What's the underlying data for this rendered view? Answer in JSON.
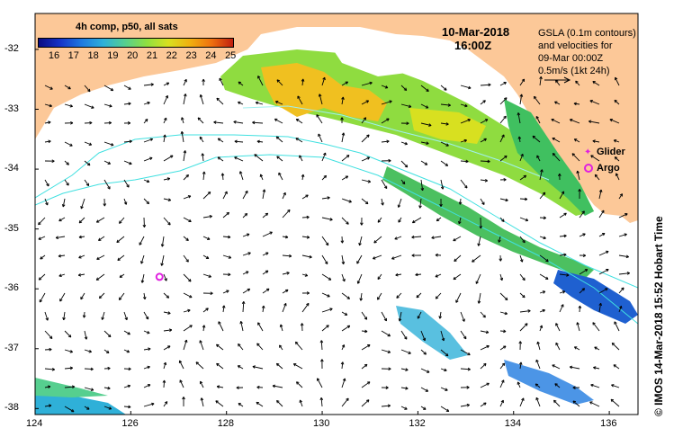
{
  "colorbar": {
    "title": "4h comp, p50, all sats",
    "ticks": [
      "16",
      "17",
      "18",
      "19",
      "20",
      "21",
      "22",
      "23",
      "24",
      "25"
    ],
    "colors": [
      "#0b0b82",
      "#1634c8",
      "#1f7ae0",
      "#2fb0d8",
      "#56cf8f",
      "#8fe040",
      "#d8e020",
      "#f0b010",
      "#ee7010",
      "#c02010"
    ]
  },
  "timestamp": {
    "date": "10-Mar-2018",
    "time": "16:00Z"
  },
  "info_lines": [
    "GSLA (0.1m contours)",
    "and velocities for",
    "09-Mar 00:00Z",
    "0.5m/s (1kt 24h)"
  ],
  "legend": {
    "glider": "Glider",
    "argo": "Argo",
    "glider_color": "#e020e0",
    "argo_color": "#e020e0"
  },
  "credit": "© IMOS 14-Mar-2018 15:52 Hobart Time",
  "axes": {
    "x_ticks": [
      "124",
      "126",
      "128",
      "130",
      "132",
      "134",
      "136"
    ],
    "y_ticks": [
      "-32",
      "-33",
      "-34",
      "-35",
      "-36",
      "-37",
      "-38"
    ],
    "xlim": [
      124,
      136.6
    ],
    "ylim": [
      -38.1,
      -31.4
    ]
  },
  "argo_position": {
    "lon": 126.6,
    "lat": -35.8
  },
  "colors": {
    "land": "#fcc898",
    "ocean": "#ffffff",
    "contour": "#40e0e0"
  }
}
